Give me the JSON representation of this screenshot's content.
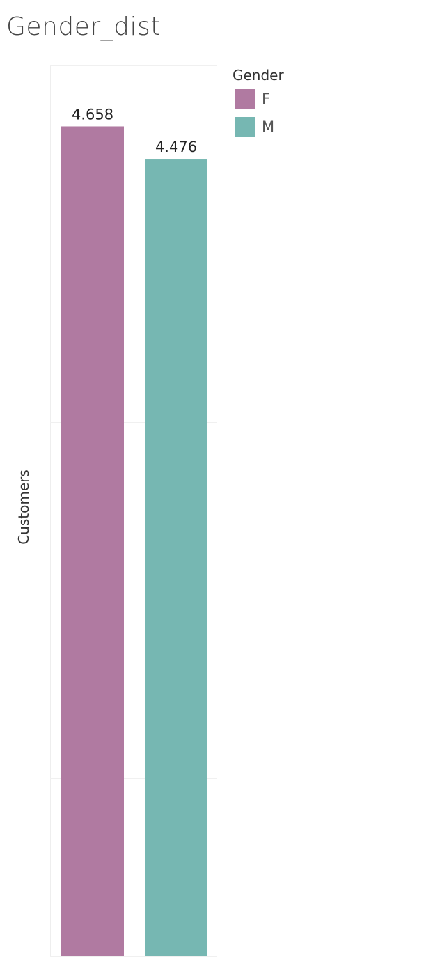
{
  "chart_data": {
    "type": "bar",
    "title": "Gender_dist",
    "ylabel": "Customers",
    "xlabel": "",
    "categories": [
      "F",
      "M"
    ],
    "values": [
      4.658,
      4.476
    ],
    "value_labels": [
      "4.658",
      "4.476"
    ],
    "colors": [
      "#b07aa1",
      "#76b7b2"
    ],
    "ylim": [
      0,
      5
    ],
    "grid": true,
    "legend": {
      "title": "Gender",
      "placement": "top-right",
      "items": [
        {
          "label": "F",
          "color": "#b07aa1"
        },
        {
          "label": "M",
          "color": "#76b7b2"
        }
      ]
    }
  }
}
